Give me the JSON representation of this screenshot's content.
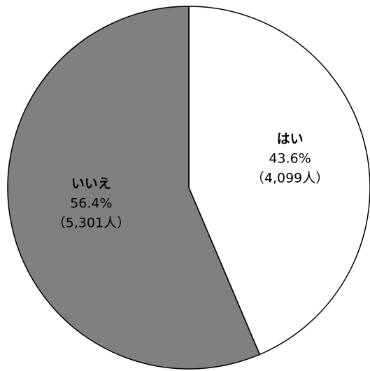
{
  "chart_data": {
    "type": "pie",
    "title": "",
    "start_angle_deg": 0,
    "direction": "clockwise",
    "slices": [
      {
        "label": "はい",
        "percent_label": "43.6%",
        "count_label": "（4,099人）",
        "value": 4099,
        "percent": 43.6,
        "color": "#ffffff"
      },
      {
        "label": "いいえ",
        "percent_label": "56.4%",
        "count_label": "（5,301人）",
        "value": 5301,
        "percent": 56.4,
        "color": "#808080"
      }
    ],
    "stroke_color": "#000000"
  }
}
